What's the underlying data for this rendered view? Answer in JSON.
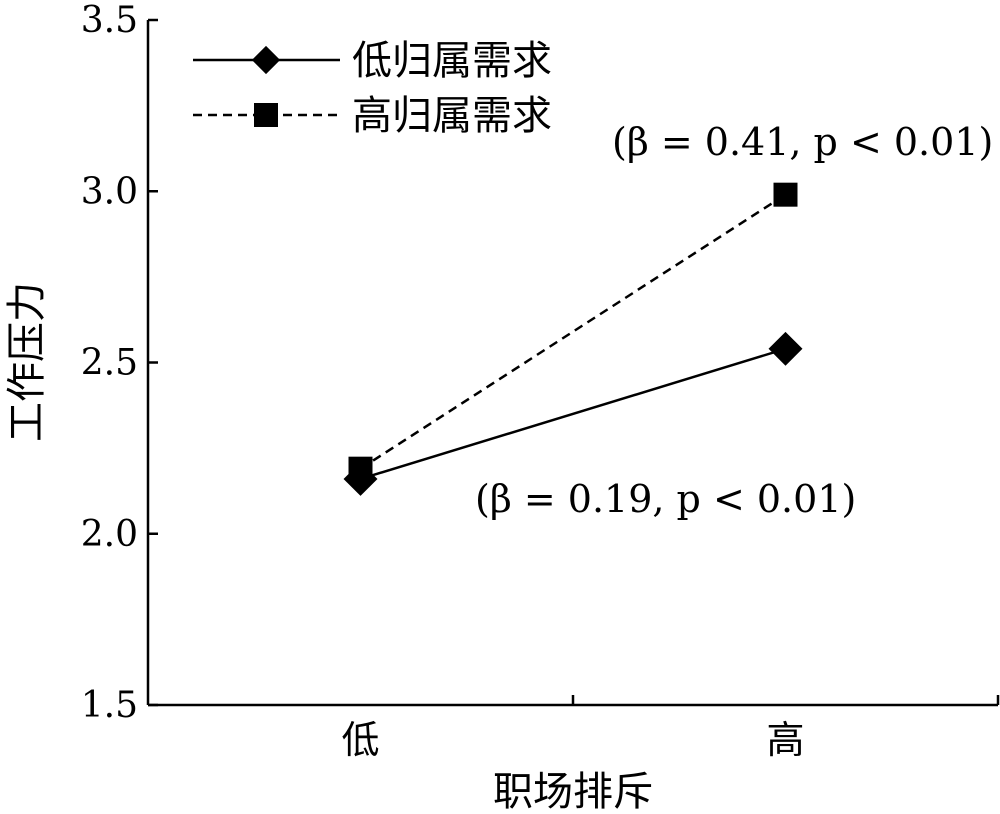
{
  "chart_data": {
    "type": "line",
    "xlabel": "职场排斥",
    "ylabel": "工作压力",
    "categories": [
      "低",
      "高"
    ],
    "ylim": [
      1.5,
      3.5
    ],
    "yticks": [
      "1.5",
      "2.0",
      "2.5",
      "3.0",
      "3.5"
    ],
    "grid": false,
    "legend_position": "top-left",
    "series": [
      {
        "name": "低归属需求",
        "values": [
          2.16,
          2.54
        ],
        "line": "solid",
        "marker": "diamond",
        "color": "#000000"
      },
      {
        "name": "高归属需求",
        "values": [
          2.19,
          2.99
        ],
        "line": "dashed",
        "marker": "square",
        "color": "#000000"
      }
    ],
    "annotations": [
      {
        "text": "(β = 0.41, p < 0.01)",
        "series": "高归属需求"
      },
      {
        "text": "(β = 0.19, p < 0.01)",
        "series": "低归属需求"
      }
    ]
  }
}
